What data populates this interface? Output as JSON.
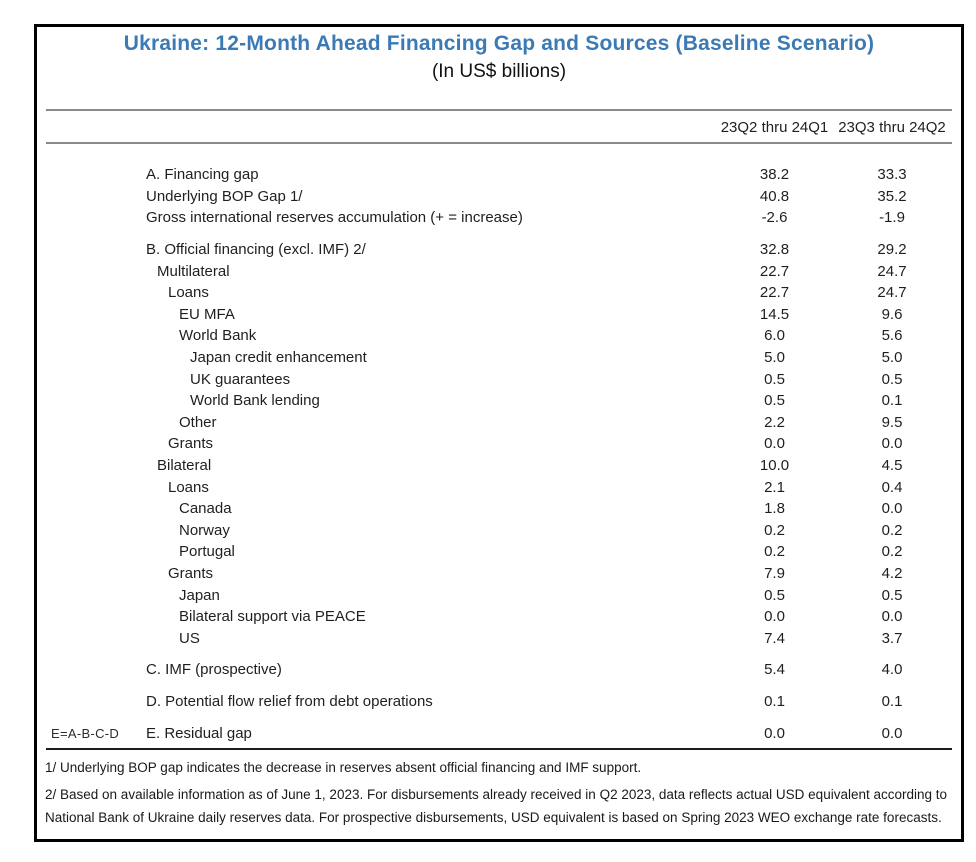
{
  "title": "Ukraine: 12-Month Ahead Financing Gap and Sources (Baseline Scenario)",
  "subtitle": "(In US$ billions)",
  "accent_color": "#3b7ab5",
  "table": {
    "columns": [
      "23Q2 thru 24Q1",
      "23Q3 thru 24Q2"
    ],
    "rows": [
      {
        "label": "A. Financing gap",
        "indent": 0,
        "values": [
          "38.2",
          "33.3"
        ]
      },
      {
        "label": "Underlying BOP Gap 1/",
        "indent": 0,
        "values": [
          "40.8",
          "35.2"
        ]
      },
      {
        "label": "Gross international reserves accumulation (+ = increase)",
        "indent": 0,
        "values": [
          "-2.6",
          "-1.9"
        ]
      },
      {
        "label": "B. Official financing (excl. IMF) 2/",
        "indent": 0,
        "gap_before": true,
        "values": [
          "32.8",
          "29.2"
        ]
      },
      {
        "label": "Multilateral",
        "indent": 1,
        "values": [
          "22.7",
          "24.7"
        ]
      },
      {
        "label": "Loans",
        "indent": 2,
        "values": [
          "22.7",
          "24.7"
        ]
      },
      {
        "label": "EU MFA",
        "indent": 3,
        "values": [
          "14.5",
          "9.6"
        ]
      },
      {
        "label": "World Bank",
        "indent": 3,
        "values": [
          "6.0",
          "5.6"
        ]
      },
      {
        "label": "Japan credit enhancement",
        "indent": 4,
        "values": [
          "5.0",
          "5.0"
        ]
      },
      {
        "label": "UK guarantees",
        "indent": 4,
        "values": [
          "0.5",
          "0.5"
        ]
      },
      {
        "label": "World Bank lending",
        "indent": 4,
        "values": [
          "0.5",
          "0.1"
        ]
      },
      {
        "label": "Other",
        "indent": 3,
        "values": [
          "2.2",
          "9.5"
        ]
      },
      {
        "label": "Grants",
        "indent": 2,
        "values": [
          "0.0",
          "0.0"
        ]
      },
      {
        "label": "Bilateral",
        "indent": 1,
        "values": [
          "10.0",
          "4.5"
        ]
      },
      {
        "label": "Loans",
        "indent": 2,
        "values": [
          "2.1",
          "0.4"
        ]
      },
      {
        "label": "Canada",
        "indent": 3,
        "values": [
          "1.8",
          "0.0"
        ]
      },
      {
        "label": "Norway",
        "indent": 3,
        "values": [
          "0.2",
          "0.2"
        ]
      },
      {
        "label": "Portugal",
        "indent": 3,
        "values": [
          "0.2",
          "0.2"
        ]
      },
      {
        "label": "Grants",
        "indent": 2,
        "values": [
          "7.9",
          "4.2"
        ]
      },
      {
        "label": "Japan",
        "indent": 3,
        "values": [
          "0.5",
          "0.5"
        ]
      },
      {
        "label": "Bilateral support via PEACE",
        "indent": 3,
        "values": [
          "0.0",
          "0.0"
        ]
      },
      {
        "label": "US",
        "indent": 3,
        "values": [
          "7.4",
          "3.7"
        ]
      },
      {
        "label": "C. IMF (prospective)",
        "indent": 0,
        "gap_before": true,
        "values": [
          "5.4",
          "4.0"
        ]
      },
      {
        "label": "D. Potential flow relief from debt operations",
        "indent": 0,
        "gap_before": true,
        "values": [
          "0.1",
          "0.1"
        ]
      },
      {
        "label": "E. Residual gap",
        "indent": 0,
        "gap_before": true,
        "note": "E=A-B-C-D",
        "values": [
          "0.0",
          "0.0"
        ]
      }
    ]
  },
  "footnotes": [
    "1/ Underlying BOP gap indicates the decrease in reserves absent official financing and IMF support.",
    "2/ Based on available information as of June 1, 2023. For disbursements already received in Q2 2023, data reflects actual USD equivalent according to National Bank of Ukraine daily reserves data. For prospective disbursements, USD equivalent is based on Spring 2023 WEO exchange rate forecasts."
  ]
}
